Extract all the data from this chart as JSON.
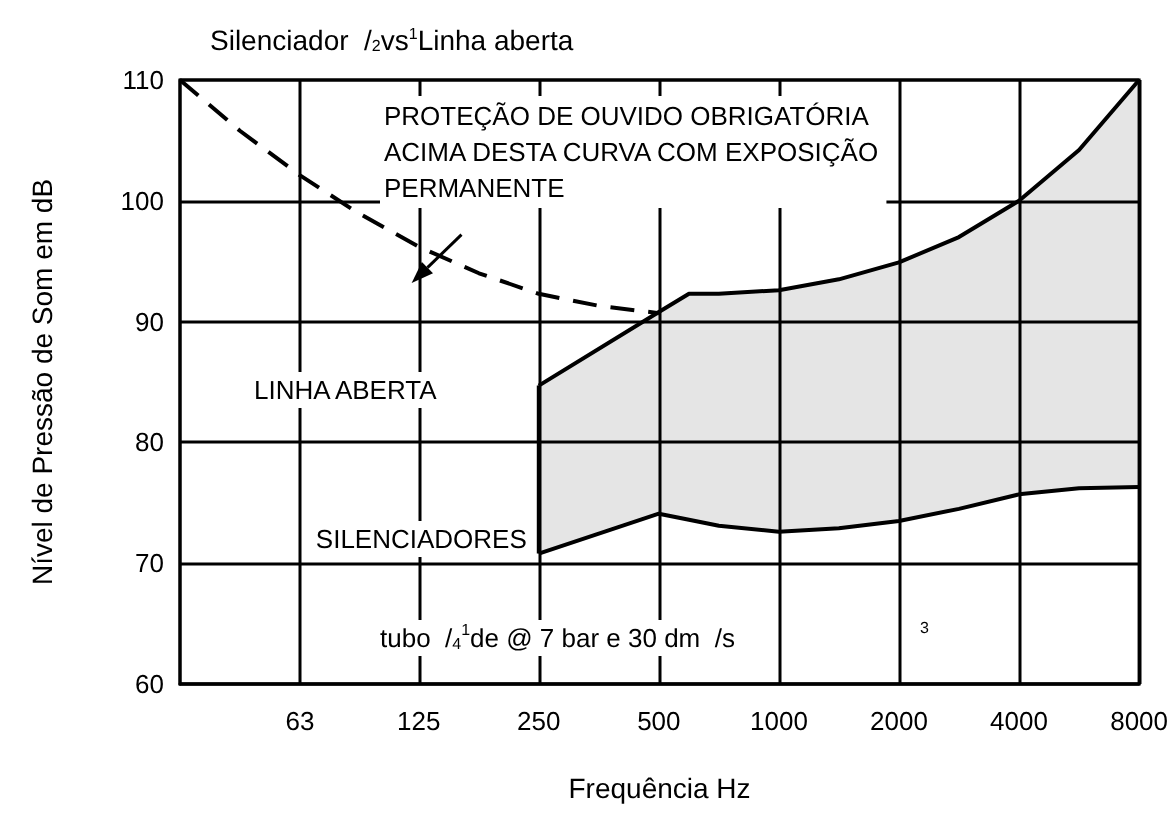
{
  "chart_data": {
    "type": "line",
    "title": "Silenciador  /$_{2}$vs$^{1}$Linha aberta",
    "xlabel": "Frequência Hz",
    "ylabel": "Nível de Pressão de Som em dB",
    "log": "x",
    "grid": true,
    "xlim": [
      31.5,
      8000
    ],
    "xticks": [
      63,
      125,
      250,
      500,
      1000,
      2000,
      4000,
      8000
    ],
    "ylim": [
      60,
      110
    ],
    "yticks": [
      60,
      70,
      80,
      90,
      100,
      110
    ],
    "series": [
      {
        "type": "line",
        "color": "#000000",
        "line_style": "dashed",
        "x": [
          31.5,
          44.5,
          63,
          88,
          125,
          177,
          250,
          354,
          500
        ],
        "values": [
          110,
          105.8,
          102.1,
          99,
          96.2,
          94,
          92.3,
          91.3,
          90.7
        ]
      },
      {
        "color": "#000000",
        "x": [
          250,
          500,
          595,
          707,
          1000,
          1414,
          2000,
          2828,
          4000,
          5657,
          8000
        ],
        "values": [
          84.7,
          90.8,
          92.3,
          92.3,
          92.6,
          93.5,
          94.9,
          97,
          100,
          104.2,
          110
        ],
        "lower": [
          70.8,
          74.1,
          73.6,
          73.1,
          72.6,
          72.9,
          73.5,
          74.5,
          75.7,
          76.2,
          76.3
        ],
        "upper": [
          84.7,
          90.8,
          92.3,
          92.3,
          92.6,
          93.5,
          94.9,
          97,
          100,
          104.2,
          110
        ]
      },
      {
        "color": "#000000",
        "x": [
          250,
          500,
          595,
          707,
          1000,
          1414,
          2000,
          2828,
          4000,
          5657,
          8000
        ],
        "values": [
          70.8,
          74.1,
          73.6,
          73.1,
          72.6,
          72.9,
          73.5,
          74.5,
          75.7,
          76.2,
          76.3
        ]
      }
    ],
    "annotations": [
      "PROTEÇÃO DE OUVIDO OBRIGATÓRIA\nACIMA DESTA CURVA COM EXPOSIÇÃO\nPERMANENTE",
      "LINHA ABERTA",
      {
        "text": "SILENCIADORES",
        "x": 250,
        "y": 72
      },
      "tubo  /$_{4}$$^{1}$de @ 7 bar e 30 dm  /s",
      "3"
    ]
  }
}
